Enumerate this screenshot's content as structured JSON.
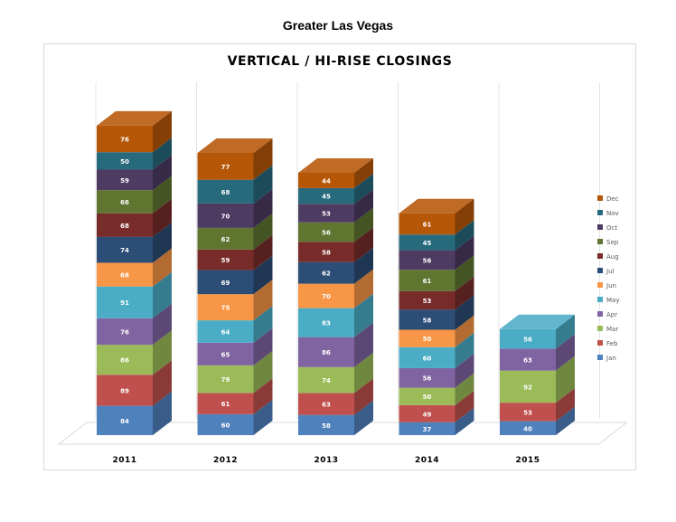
{
  "page": {
    "title": "Greater Las Vegas"
  },
  "chart_data": {
    "type": "bar",
    "stacked": true,
    "three_d": true,
    "title": "VERTICAL / HI-RISE CLOSINGS",
    "categories": [
      "2011",
      "2012",
      "2013",
      "2014",
      "2015"
    ],
    "xlabel": "",
    "ylabel": "",
    "grid": true,
    "legend_position": "right",
    "series": [
      {
        "name": "Jan",
        "color": "#4f81bd",
        "values": [
          84,
          60,
          58,
          37,
          40
        ]
      },
      {
        "name": "Feb",
        "color": "#c0504d",
        "values": [
          89,
          61,
          63,
          49,
          53
        ]
      },
      {
        "name": "Mar",
        "color": "#9bbb59",
        "values": [
          86,
          79,
          74,
          50,
          92
        ]
      },
      {
        "name": "Apr",
        "color": "#8064a2",
        "values": [
          76,
          65,
          86,
          56,
          63
        ]
      },
      {
        "name": "May",
        "color": "#4bacc6",
        "values": [
          91,
          64,
          83,
          60,
          56
        ]
      },
      {
        "name": "Jun",
        "color": "#f79646",
        "values": [
          68,
          75,
          70,
          50,
          null
        ]
      },
      {
        "name": "Jul",
        "color": "#2c4d75",
        "values": [
          74,
          69,
          62,
          58,
          null
        ]
      },
      {
        "name": "Aug",
        "color": "#772c2a",
        "values": [
          68,
          59,
          58,
          53,
          null
        ]
      },
      {
        "name": "Sep",
        "color": "#5f7530",
        "values": [
          66,
          62,
          56,
          61,
          null
        ]
      },
      {
        "name": "Oct",
        "color": "#4d3b62",
        "values": [
          59,
          70,
          53,
          56,
          null
        ]
      },
      {
        "name": "Nov",
        "color": "#276a7c",
        "values": [
          50,
          68,
          45,
          45,
          null
        ]
      },
      {
        "name": "Dec",
        "color": "#b65708",
        "values": [
          76,
          77,
          44,
          61,
          null
        ]
      }
    ]
  }
}
